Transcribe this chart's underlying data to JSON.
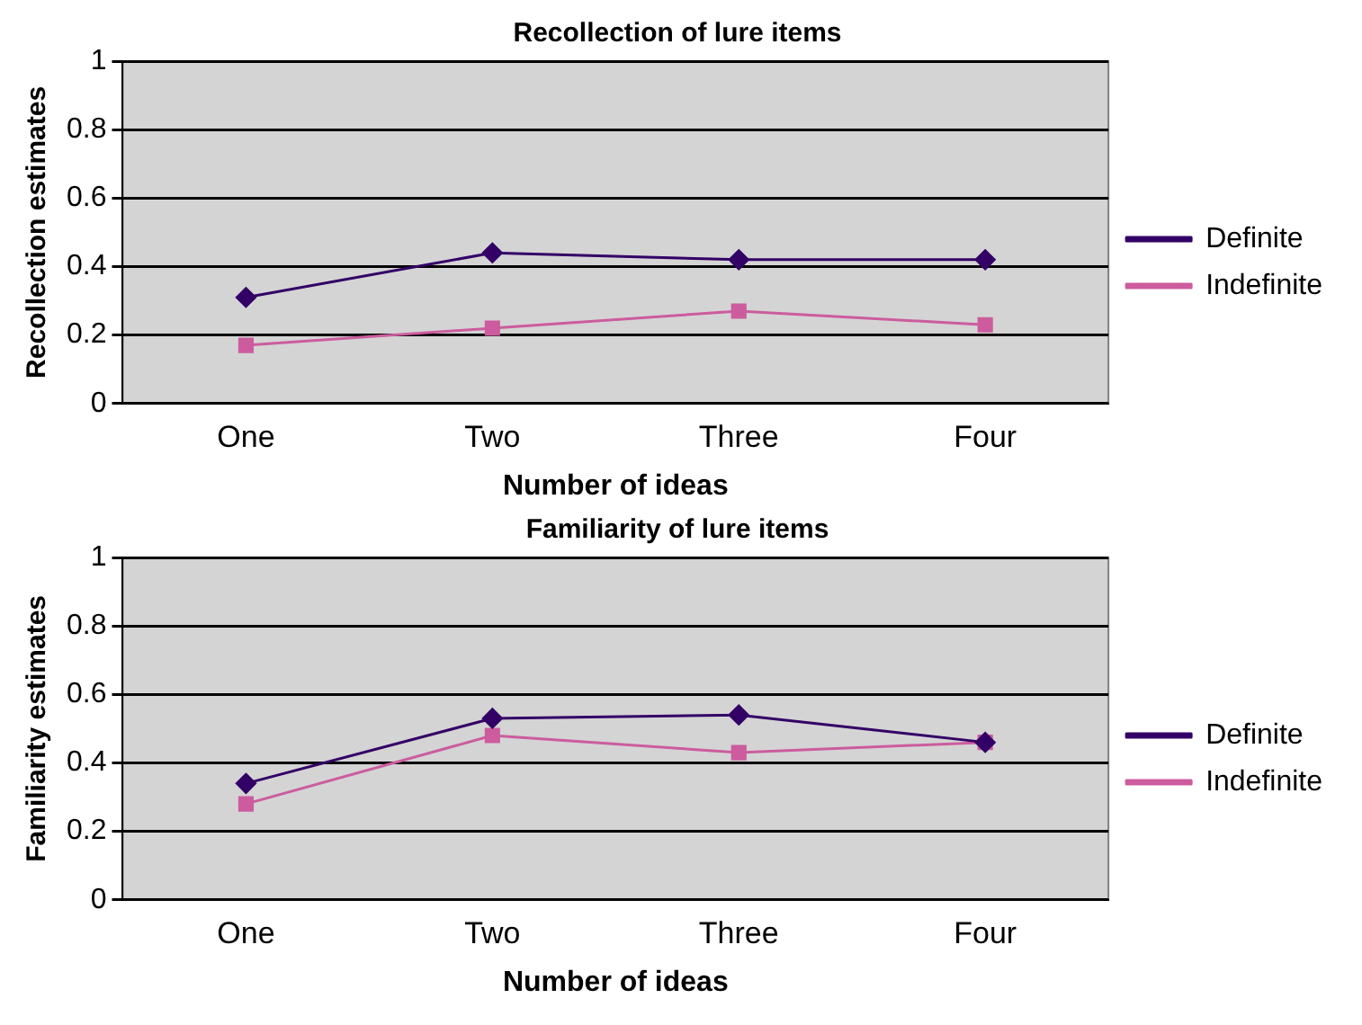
{
  "chart_data": [
    {
      "type": "line",
      "title": "Recollection of lure items",
      "xlabel": "Number of ideas",
      "ylabel": "Recollection estimates",
      "categories": [
        "One",
        "Two",
        "Three",
        "Four"
      ],
      "series": [
        {
          "name": "Definite",
          "color": "#330066",
          "marker": "diamond",
          "values": [
            0.31,
            0.44,
            0.42,
            0.42
          ]
        },
        {
          "name": "Indefinite",
          "color": "#cc5c9e",
          "marker": "square",
          "values": [
            0.17,
            0.22,
            0.27,
            0.23
          ]
        }
      ],
      "ylim": [
        0,
        1
      ],
      "yticks": [
        0,
        0.2,
        0.4,
        0.6,
        0.8,
        1
      ],
      "grid": "y",
      "legend": "right"
    },
    {
      "type": "line",
      "title": "Familiarity of lure items",
      "xlabel": "Number of ideas",
      "ylabel": "Familiarity estimates",
      "categories": [
        "One",
        "Two",
        "Three",
        "Four"
      ],
      "series": [
        {
          "name": "Definite",
          "color": "#330066",
          "marker": "diamond",
          "values": [
            0.34,
            0.53,
            0.54,
            0.46
          ]
        },
        {
          "name": "Indefinite",
          "color": "#cc5c9e",
          "marker": "square",
          "values": [
            0.28,
            0.48,
            0.43,
            0.46
          ]
        }
      ],
      "ylim": [
        0,
        1
      ],
      "yticks": [
        0,
        0.2,
        0.4,
        0.6,
        0.8,
        1
      ],
      "grid": "y",
      "legend": "right"
    }
  ]
}
